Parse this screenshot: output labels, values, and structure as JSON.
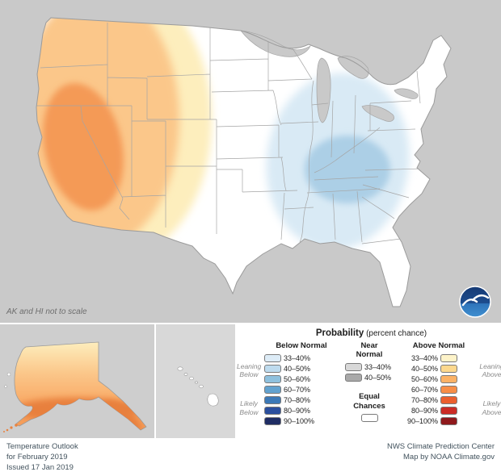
{
  "map": {
    "note": "AK and HI not to scale",
    "colors": {
      "background": "#c9c9c9",
      "land_equal_chances": "#ffffff",
      "above_33_40": "#fdeebd",
      "above_40_50": "#fbc78a",
      "above_50_60": "#f49a57",
      "below_33_40": "#d9eaf5",
      "below_40_50": "#accfe6",
      "state_line": "#a5a5a5"
    }
  },
  "legend": {
    "title": "Probability",
    "title_suffix": "(percent chance)",
    "below": {
      "header": "Below Normal",
      "entries": [
        {
          "label": "33–40%",
          "color": "#ddecf7"
        },
        {
          "label": "40–50%",
          "color": "#bedbee"
        },
        {
          "label": "50–60%",
          "color": "#8fc1de"
        },
        {
          "label": "60–70%",
          "color": "#62a2cf"
        },
        {
          "label": "70–80%",
          "color": "#3c79b7"
        },
        {
          "label": "80–90%",
          "color": "#2b4f9e"
        },
        {
          "label": "90–100%",
          "color": "#1f2d64"
        }
      ]
    },
    "near": {
      "header": "Near Normal",
      "entries": [
        {
          "label": "33–40%",
          "color": "#d8d8d8"
        },
        {
          "label": "40–50%",
          "color": "#a9a9a9"
        }
      ],
      "equal_label": "Equal Chances",
      "equal_color": "#ffffff"
    },
    "above": {
      "header": "Above Normal",
      "entries": [
        {
          "label": "33–40%",
          "color": "#fdf3c9"
        },
        {
          "label": "40–50%",
          "color": "#fcd88e"
        },
        {
          "label": "50–60%",
          "color": "#fbb266"
        },
        {
          "label": "60–70%",
          "color": "#f78e47"
        },
        {
          "label": "70–80%",
          "color": "#eb5f2e"
        },
        {
          "label": "80–90%",
          "color": "#cb2c26"
        },
        {
          "label": "90–100%",
          "color": "#8f191c"
        }
      ]
    },
    "side": {
      "leaning_below": "Leaning Below",
      "likely_below": "Likely Below",
      "leaning_above": "Leaning Above",
      "likely_above": "Likely Above"
    }
  },
  "footer": {
    "left_lines": [
      "Temperature Outlook",
      "for February 2019",
      "Issued 17 Jan 2019"
    ],
    "right_lines": [
      "NWS Climate Prediction Center",
      "Map by NOAA Climate.gov"
    ]
  }
}
